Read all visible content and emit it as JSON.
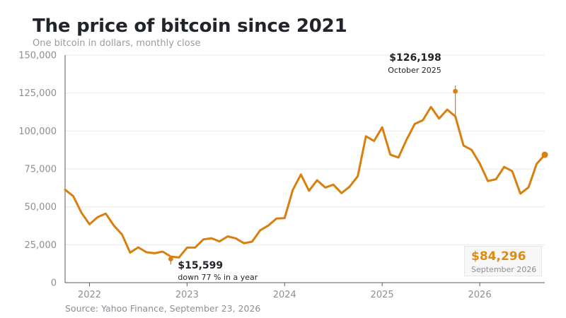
{
  "title": "The price of bitcoin since 2021",
  "subtitle": "One bitcoin in dollars, monthly close",
  "source": "Source: Yahoo Finance, September 23, 2026",
  "colors": {
    "line": "#d97f0e",
    "title": "#22242b",
    "muted": "#8e8e96",
    "grid": "#e9e9ec"
  },
  "chart_data": {
    "type": "line",
    "title": "The price of bitcoin since 2021",
    "subtitle": "One bitcoin in dollars, monthly close",
    "xlabel": "",
    "ylabel": "",
    "ylim": [
      0,
      150000
    ],
    "yticks": [
      0,
      25000,
      50000,
      75000,
      100000,
      125000,
      150000
    ],
    "ytick_labels": [
      "0",
      "25,000",
      "50,000",
      "75,000",
      "100,000",
      "125,000",
      "150,000"
    ],
    "xlim": [
      "2021-10",
      "2026-09"
    ],
    "xticks": [
      "2022-01",
      "2023-01",
      "2024-01",
      "2025-01",
      "2026-01"
    ],
    "xtick_labels": [
      "2022",
      "2023",
      "2024",
      "2025",
      "2026"
    ],
    "grid": true,
    "series": [
      {
        "x": [
          "2021-10",
          "2021-11",
          "2021-12",
          "2022-01",
          "2022-02",
          "2022-03",
          "2022-04",
          "2022-05",
          "2022-06",
          "2022-07",
          "2022-08",
          "2022-09",
          "2022-10",
          "2022-11",
          "2022-12",
          "2023-01",
          "2023-02",
          "2023-03",
          "2023-04",
          "2023-05",
          "2023-06",
          "2023-07",
          "2023-08",
          "2023-09",
          "2023-10",
          "2023-11",
          "2023-12",
          "2024-01",
          "2024-02",
          "2024-03",
          "2024-04",
          "2024-05",
          "2024-06",
          "2024-07",
          "2024-08",
          "2024-09",
          "2024-10",
          "2024-11",
          "2024-12",
          "2025-01",
          "2025-02",
          "2025-03",
          "2025-04",
          "2025-05",
          "2025-06",
          "2025-07",
          "2025-08",
          "2025-09",
          "2025-10",
          "2025-11",
          "2025-12",
          "2026-01",
          "2026-02",
          "2026-03",
          "2026-04",
          "2026-05",
          "2026-06",
          "2026-07",
          "2026-08",
          "2026-09"
        ],
        "values": [
          61300,
          57000,
          46200,
          38500,
          43200,
          45500,
          37700,
          31800,
          19800,
          23300,
          20100,
          19400,
          20500,
          17200,
          16600,
          23100,
          23200,
          28500,
          29300,
          27200,
          30500,
          29200,
          26000,
          27000,
          34500,
          37700,
          42300,
          42600,
          61100,
          71300,
          60600,
          67500,
          62700,
          64600,
          59000,
          63300,
          70200,
          96500,
          93400,
          102400,
          84400,
          82500,
          94200,
          104600,
          107100,
          115800,
          108200,
          114100,
          109600,
          90400,
          87500,
          78600,
          67000,
          68200,
          76300,
          73500,
          58700,
          62800,
          78300,
          84296
        ]
      }
    ],
    "annotations": [
      {
        "x": "2022-11",
        "y": 15599,
        "value_label": "$15,599",
        "note": "down 77 % in a year"
      },
      {
        "x": "2025-10",
        "y": 126198,
        "value_label": "$126,198",
        "note": "October 2025"
      }
    ],
    "last_point": {
      "x": "2026-09",
      "y": 84296,
      "value_label": "$84,296",
      "date_label": "September 2026"
    }
  }
}
